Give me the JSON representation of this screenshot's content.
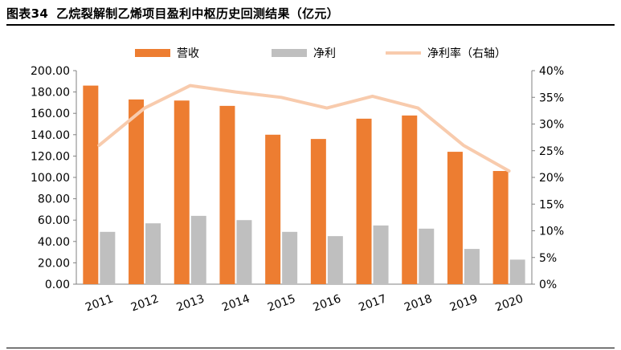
{
  "figure": {
    "number": "图表34",
    "title": "乙烷裂解制乙烯项目盈利中枢历史回测结果（亿元）"
  },
  "colors": {
    "revenue": "#ed7d31",
    "net_profit": "#bfbfbf",
    "margin": "#f8cbad",
    "axis": "#808080"
  },
  "chart_data": {
    "type": "bar",
    "categories": [
      "2011",
      "2012",
      "2013",
      "2014",
      "2015",
      "2016",
      "2017",
      "2018",
      "2019",
      "2020"
    ],
    "series": [
      {
        "name": "营收",
        "type": "bar",
        "axis": "left",
        "values": [
          186,
          173,
          172,
          167,
          140,
          136,
          155,
          158,
          124,
          106
        ]
      },
      {
        "name": "净利",
        "type": "bar",
        "axis": "left",
        "values": [
          49,
          57,
          64,
          60,
          49,
          45,
          55,
          52,
          33,
          23
        ]
      },
      {
        "name": "净利率（右轴）",
        "type": "line",
        "axis": "right",
        "values": [
          0.26,
          0.33,
          0.372,
          0.36,
          0.35,
          0.33,
          0.352,
          0.33,
          0.26,
          0.212
        ]
      }
    ],
    "y_left": {
      "min": 0,
      "max": 200,
      "step": 20,
      "tick_labels": [
        "0.00",
        "20.00",
        "40.00",
        "60.00",
        "80.00",
        "100.00",
        "120.00",
        "140.00",
        "160.00",
        "180.00",
        "200.00"
      ]
    },
    "y_right": {
      "min": 0,
      "max": 0.4,
      "step": 0.05,
      "tick_labels": [
        "0%",
        "5%",
        "10%",
        "15%",
        "20%",
        "25%",
        "30%",
        "35%",
        "40%"
      ]
    },
    "legend_position": "top",
    "grid": false
  }
}
